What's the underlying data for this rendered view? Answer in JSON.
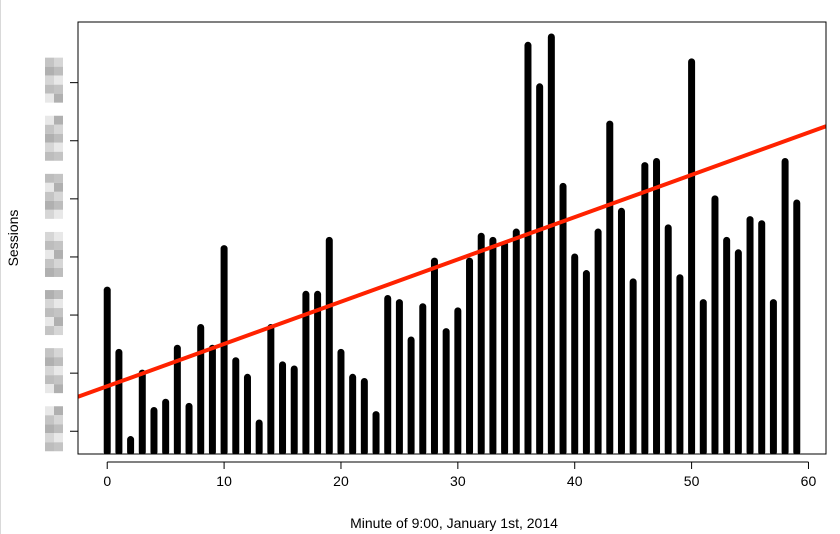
{
  "chart_data": {
    "type": "bar",
    "xlabel": "Minute of 9:00, January 1st, 2014",
    "ylabel": "Sessions",
    "x_ticks": [
      0,
      10,
      20,
      30,
      40,
      50,
      60
    ],
    "xlim": [
      -2.5,
      61.5
    ],
    "ylim": [
      0,
      100
    ],
    "y_tick_values": [
      5,
      19,
      33,
      47,
      61,
      75,
      89
    ],
    "y_tick_labels_obscured": true,
    "x": [
      0,
      1,
      2,
      3,
      4,
      5,
      6,
      7,
      8,
      9,
      10,
      11,
      12,
      13,
      14,
      15,
      16,
      17,
      18,
      19,
      20,
      21,
      22,
      23,
      24,
      25,
      26,
      27,
      28,
      29,
      30,
      31,
      32,
      33,
      34,
      35,
      36,
      37,
      38,
      39,
      40,
      41,
      42,
      43,
      44,
      45,
      46,
      47,
      48,
      49,
      50,
      51,
      52,
      53,
      54,
      55,
      56,
      57,
      58,
      59
    ],
    "values": [
      39,
      24,
      3,
      19,
      10,
      12,
      25,
      11,
      30,
      25,
      49,
      22,
      18,
      7,
      30,
      21,
      20,
      38,
      38,
      51,
      24,
      18,
      17,
      9,
      37,
      36,
      27,
      35,
      46,
      29,
      34,
      46,
      52,
      51,
      50,
      53,
      98,
      88,
      100,
      64,
      47,
      43,
      53,
      79,
      58,
      41,
      69,
      70,
      54,
      42,
      94,
      36,
      61,
      51,
      48,
      56,
      55,
      36,
      70,
      60
    ],
    "trend_line": {
      "x": [
        -2.5,
        61.5
      ],
      "y": [
        13.3,
        78.5
      ],
      "color": "#ff2200"
    },
    "bar_color": "#000000",
    "grid": false
  }
}
